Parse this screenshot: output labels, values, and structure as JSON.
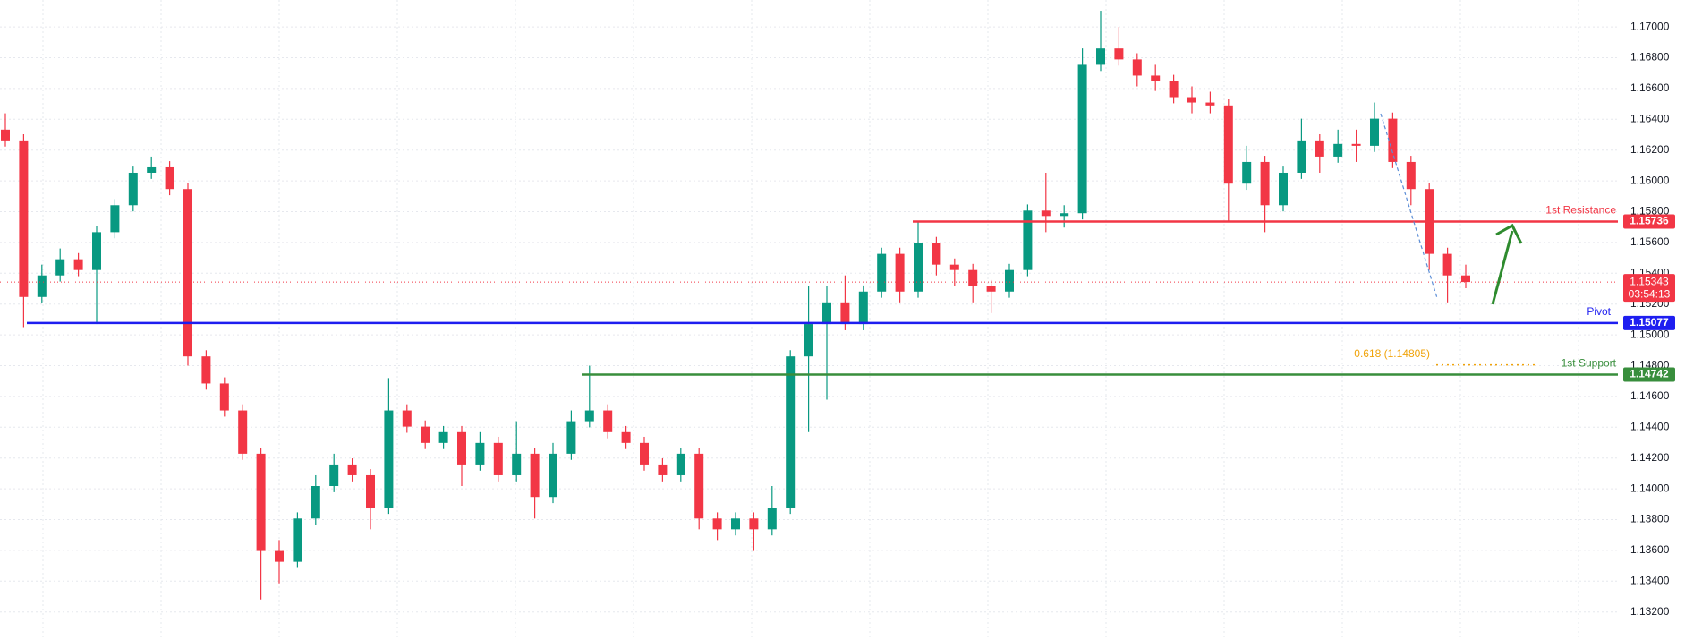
{
  "chart_data": {
    "type": "candlestick",
    "up_color": "#089981",
    "down_color": "#f23645",
    "candles": {
      "open": [
        1.16333,
        1.16263,
        1.15246,
        1.15386,
        1.15491,
        1.15421,
        1.15667,
        1.15842,
        1.16053,
        1.16088,
        1.15947,
        1.1486,
        1.14684,
        1.14509,
        1.14228,
        1.13596,
        1.13526,
        1.13807,
        1.14018,
        1.14158,
        1.14088,
        1.13877,
        1.14509,
        1.14404,
        1.14298,
        1.14368,
        1.14158,
        1.14298,
        1.14088,
        1.14228,
        1.13947,
        1.14228,
        1.14439,
        1.14509,
        1.14368,
        1.14298,
        1.14158,
        1.14088,
        1.14228,
        1.13807,
        1.13737,
        1.13807,
        1.13737,
        1.13877,
        1.1486,
        1.1507,
        1.15211,
        1.1507,
        1.15281,
        1.15526,
        1.15281,
        1.15596,
        1.15456,
        1.15421,
        1.15316,
        1.15281,
        1.15421,
        1.15807,
        1.15772,
        1.1579,
        1.16754,
        1.1686,
        1.16789,
        1.16684,
        1.16649,
        1.16544,
        1.16509,
        1.1649,
        1.15982,
        1.16123,
        1.15842,
        1.16053,
        1.16263,
        1.16158,
        1.1624,
        1.16228,
        1.16404,
        1.16123,
        1.15947,
        1.15526,
        1.15386
      ],
      "high": [
        1.16439,
        1.16303,
        1.15456,
        1.15561,
        1.15531,
        1.15707,
        1.15882,
        1.16093,
        1.16158,
        1.16128,
        1.15987,
        1.149,
        1.14724,
        1.14549,
        1.14268,
        1.13667,
        1.13847,
        1.14088,
        1.14228,
        1.14198,
        1.14128,
        1.14719,
        1.14549,
        1.14444,
        1.14408,
        1.14408,
        1.14368,
        1.14338,
        1.14439,
        1.14268,
        1.14298,
        1.14509,
        1.148,
        1.14549,
        1.14408,
        1.14338,
        1.14198,
        1.14268,
        1.14268,
        1.13847,
        1.13847,
        1.13847,
        1.14018,
        1.149,
        1.15316,
        1.15316,
        1.15386,
        1.15321,
        1.15566,
        1.15566,
        1.15736,
        1.15636,
        1.15496,
        1.15461,
        1.15356,
        1.15461,
        1.15847,
        1.16053,
        1.15842,
        1.1686,
        1.17105,
        1.17,
        1.16829,
        1.16754,
        1.16689,
        1.16614,
        1.16579,
        1.1653,
        1.16228,
        1.16163,
        1.16093,
        1.16404,
        1.16303,
        1.16333,
        1.16333,
        1.16509,
        1.16444,
        1.16163,
        1.15987,
        1.15566,
        1.15456
      ],
      "low": [
        1.16223,
        1.1505,
        1.15206,
        1.15346,
        1.15381,
        1.1507,
        1.15627,
        1.15802,
        1.16013,
        1.15907,
        1.148,
        1.14644,
        1.14469,
        1.14188,
        1.13281,
        1.13386,
        1.13486,
        1.13767,
        1.13978,
        1.14048,
        1.13737,
        1.13837,
        1.14364,
        1.14258,
        1.14258,
        1.14018,
        1.14118,
        1.14048,
        1.14048,
        1.13807,
        1.13907,
        1.14188,
        1.14399,
        1.14328,
        1.14258,
        1.14118,
        1.14048,
        1.14048,
        1.13737,
        1.13667,
        1.13697,
        1.13596,
        1.13697,
        1.13837,
        1.14368,
        1.14579,
        1.1503,
        1.1503,
        1.15241,
        1.15211,
        1.15241,
        1.15386,
        1.15316,
        1.15211,
        1.15141,
        1.15241,
        1.15381,
        1.15667,
        1.15697,
        1.1575,
        1.16714,
        1.16749,
        1.16614,
        1.16584,
        1.16504,
        1.16439,
        1.16439,
        1.15736,
        1.15942,
        1.15667,
        1.15802,
        1.16013,
        1.16053,
        1.16118,
        1.16123,
        1.16188,
        1.16083,
        1.15842,
        1.15421,
        1.15211,
        1.15303
      ],
      "close": [
        1.16263,
        1.15246,
        1.15386,
        1.15491,
        1.15421,
        1.15667,
        1.15842,
        1.16053,
        1.16088,
        1.15947,
        1.1486,
        1.14684,
        1.14509,
        1.14228,
        1.13596,
        1.13526,
        1.13807,
        1.14018,
        1.14158,
        1.14088,
        1.13877,
        1.14509,
        1.14404,
        1.14298,
        1.14368,
        1.14158,
        1.14298,
        1.14088,
        1.14228,
        1.13947,
        1.14228,
        1.14439,
        1.14509,
        1.14368,
        1.14298,
        1.14158,
        1.14088,
        1.14228,
        1.13807,
        1.13737,
        1.13807,
        1.13737,
        1.13877,
        1.1486,
        1.1507,
        1.15211,
        1.1507,
        1.15281,
        1.15526,
        1.15281,
        1.15596,
        1.15456,
        1.15421,
        1.15316,
        1.15281,
        1.15421,
        1.15807,
        1.15772,
        1.1579,
        1.16754,
        1.1686,
        1.16789,
        1.16684,
        1.16649,
        1.16544,
        1.16509,
        1.1649,
        1.15982,
        1.16123,
        1.15842,
        1.16053,
        1.16263,
        1.16158,
        1.1624,
        1.16228,
        1.16404,
        1.16123,
        1.15947,
        1.15526,
        1.15386,
        1.15343
      ]
    },
    "ylim": [
      1.13018,
      1.17175
    ],
    "yticks": [
      {
        "value": 1.132,
        "label": "1.13200"
      },
      {
        "value": 1.134,
        "label": "1.13400"
      },
      {
        "value": 1.136,
        "label": "1.13600"
      },
      {
        "value": 1.138,
        "label": "1.13800"
      },
      {
        "value": 1.14,
        "label": "1.14000"
      },
      {
        "value": 1.142,
        "label": "1.14200"
      },
      {
        "value": 1.144,
        "label": "1.14400"
      },
      {
        "value": 1.146,
        "label": "1.14600"
      },
      {
        "value": 1.148,
        "label": "1.14800"
      },
      {
        "value": 1.15,
        "label": "1.15000"
      },
      {
        "value": 1.152,
        "label": "1.15200"
      },
      {
        "value": 1.154,
        "label": "1.15400"
      },
      {
        "value": 1.156,
        "label": "1.15600"
      },
      {
        "value": 1.158,
        "label": "1.15800"
      },
      {
        "value": 1.16,
        "label": "1.16000"
      },
      {
        "value": 1.162,
        "label": "1.16200"
      },
      {
        "value": 1.164,
        "label": "1.16400"
      },
      {
        "value": 1.166,
        "label": "1.16600"
      },
      {
        "value": 1.168,
        "label": "1.16800"
      },
      {
        "value": 1.17,
        "label": "1.17000"
      }
    ],
    "grid": true,
    "levels": [
      {
        "name": "1st Resistance",
        "value": 1.15736,
        "color": "#f23645"
      },
      {
        "name": "Pivot",
        "value": 1.15077,
        "color": "#1e1ef0"
      },
      {
        "name": "1st Support",
        "value": 1.14742,
        "color": "#388e3c"
      }
    ],
    "last_price": {
      "value": 1.15343,
      "countdown": "03:54:13",
      "color": "#f23645"
    },
    "fib": {
      "label": "0.618 (1.14805)",
      "value": 1.14805,
      "color": "#f0a30a"
    }
  }
}
